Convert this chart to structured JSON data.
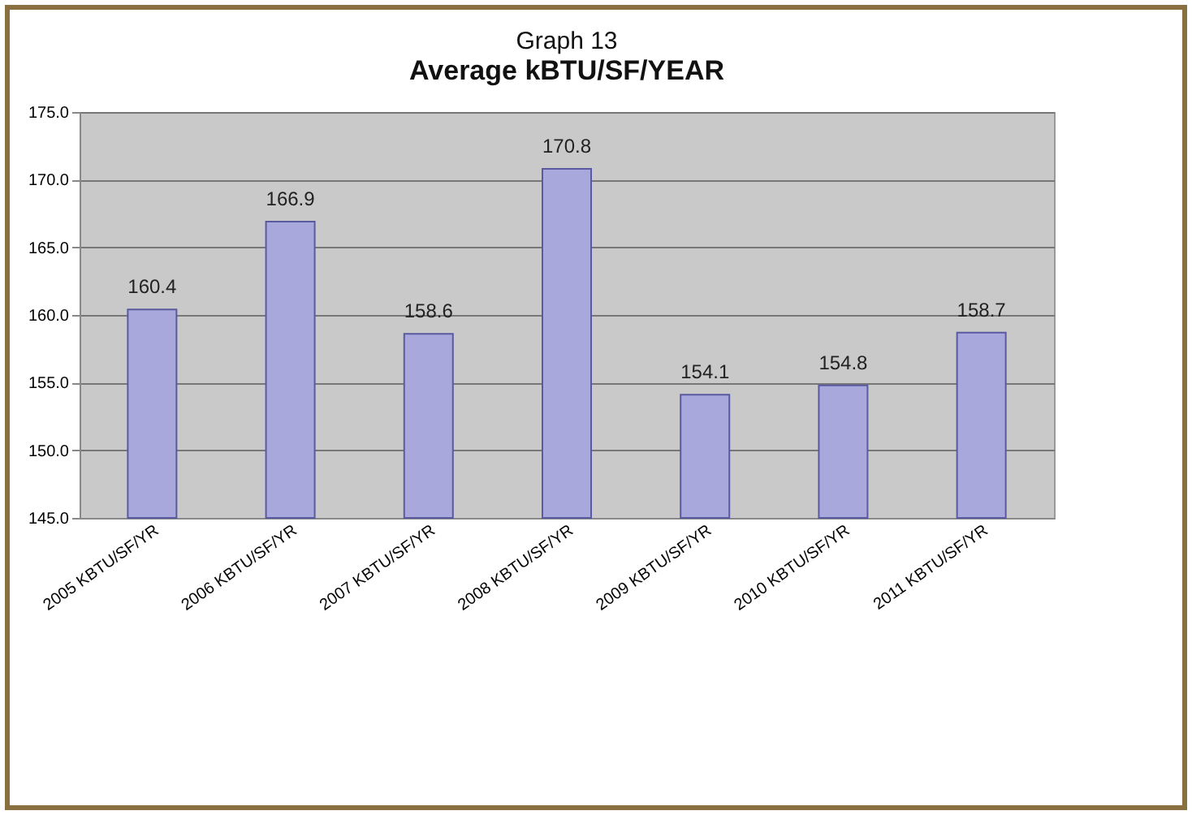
{
  "chart_data": {
    "type": "bar",
    "title": "Graph 13",
    "subtitle": "Average kBTU/SF/YEAR",
    "categories": [
      "2005 KBTU/SF/YR",
      "2006 KBTU/SF/YR",
      "2007 KBTU/SF/YR",
      "2008 KBTU/SF/YR",
      "2009 KBTU/SF/YR",
      "2010 KBTU/SF/YR",
      "2011 KBTU/SF/YR"
    ],
    "values": [
      160.4,
      166.9,
      158.6,
      170.8,
      154.1,
      154.8,
      158.7
    ],
    "color": "#a8a8dc",
    "ylim": [
      145,
      175
    ],
    "yticks": [
      {
        "value": 145,
        "label": "145.0"
      },
      {
        "value": 150,
        "label": "150.0"
      },
      {
        "value": 155,
        "label": "155.0"
      },
      {
        "value": 160,
        "label": "160.0"
      },
      {
        "value": 165,
        "label": "165.0"
      },
      {
        "value": 170,
        "label": "170.0"
      },
      {
        "value": 175,
        "label": "175.0"
      }
    ],
    "grid": "y",
    "data_labels": true
  }
}
